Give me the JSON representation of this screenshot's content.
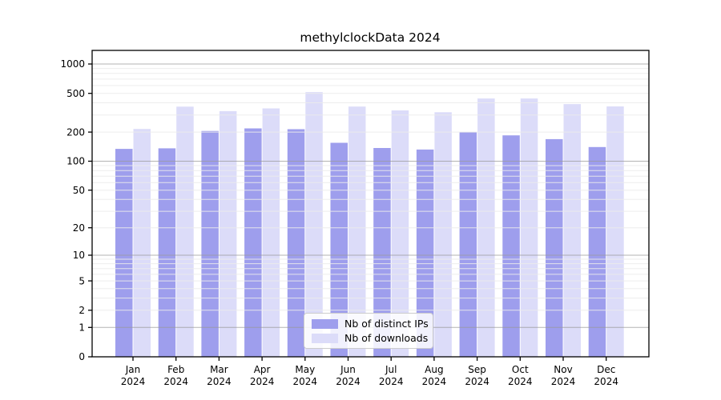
{
  "chart_data": {
    "type": "bar",
    "title": "methylclockData 2024",
    "scale": "log10(1+x)",
    "categories": [
      "Jan",
      "Feb",
      "Mar",
      "Apr",
      "May",
      "Jun",
      "Jul",
      "Aug",
      "Sep",
      "Oct",
      "Nov",
      "Dec"
    ],
    "year": "2024",
    "series": [
      {
        "name": "Nb of distinct IPs",
        "color": "#9e9eed",
        "values": [
          134,
          136,
          205,
          218,
          214,
          155,
          137,
          132,
          200,
          185,
          169,
          140
        ]
      },
      {
        "name": "Nb of downloads",
        "color": "#dcdcf9",
        "values": [
          215,
          365,
          328,
          350,
          515,
          366,
          334,
          320,
          443,
          443,
          388,
          367
        ]
      }
    ],
    "y_ticks": [
      0,
      1,
      2,
      5,
      10,
      20,
      50,
      100,
      200,
      500,
      1000
    ],
    "y_major_gridlines": [
      1,
      10,
      100,
      1000
    ],
    "ylim": [
      0,
      1100
    ],
    "grid": "on",
    "legend_position": "inside-bottom-center",
    "colors": {
      "major_grid": "#9a9a9a",
      "minor_grid": "#ebebeb",
      "axis": "#000000",
      "legend_border": "#cccccc"
    }
  }
}
